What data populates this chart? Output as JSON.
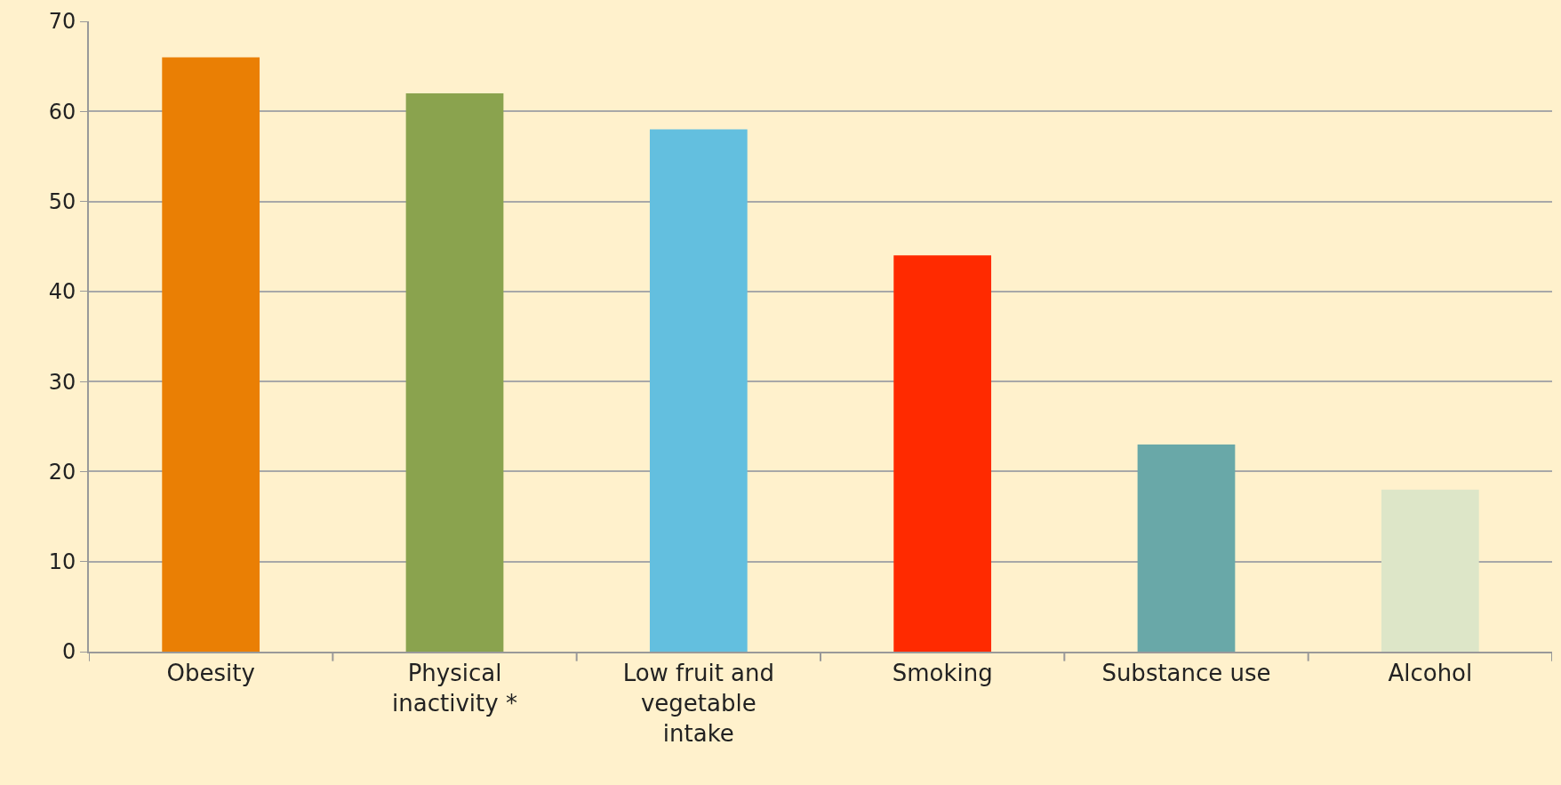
{
  "chart_data": {
    "type": "bar",
    "categories": [
      "Obesity",
      "Physical inactivity *",
      "Low fruit and vegetable intake",
      "Smoking",
      "Substance use",
      "Alcohol"
    ],
    "values": [
      66,
      62,
      58,
      44,
      23,
      18
    ],
    "colors": [
      "#ea7f04",
      "#8aa34e",
      "#63bfdf",
      "#ff2a00",
      "#69a8a8",
      "#dde6c8"
    ],
    "ylim": [
      0,
      70
    ],
    "yticks": [
      0,
      10,
      20,
      30,
      40,
      50,
      60,
      70
    ],
    "grid": "y",
    "legend": false
  }
}
